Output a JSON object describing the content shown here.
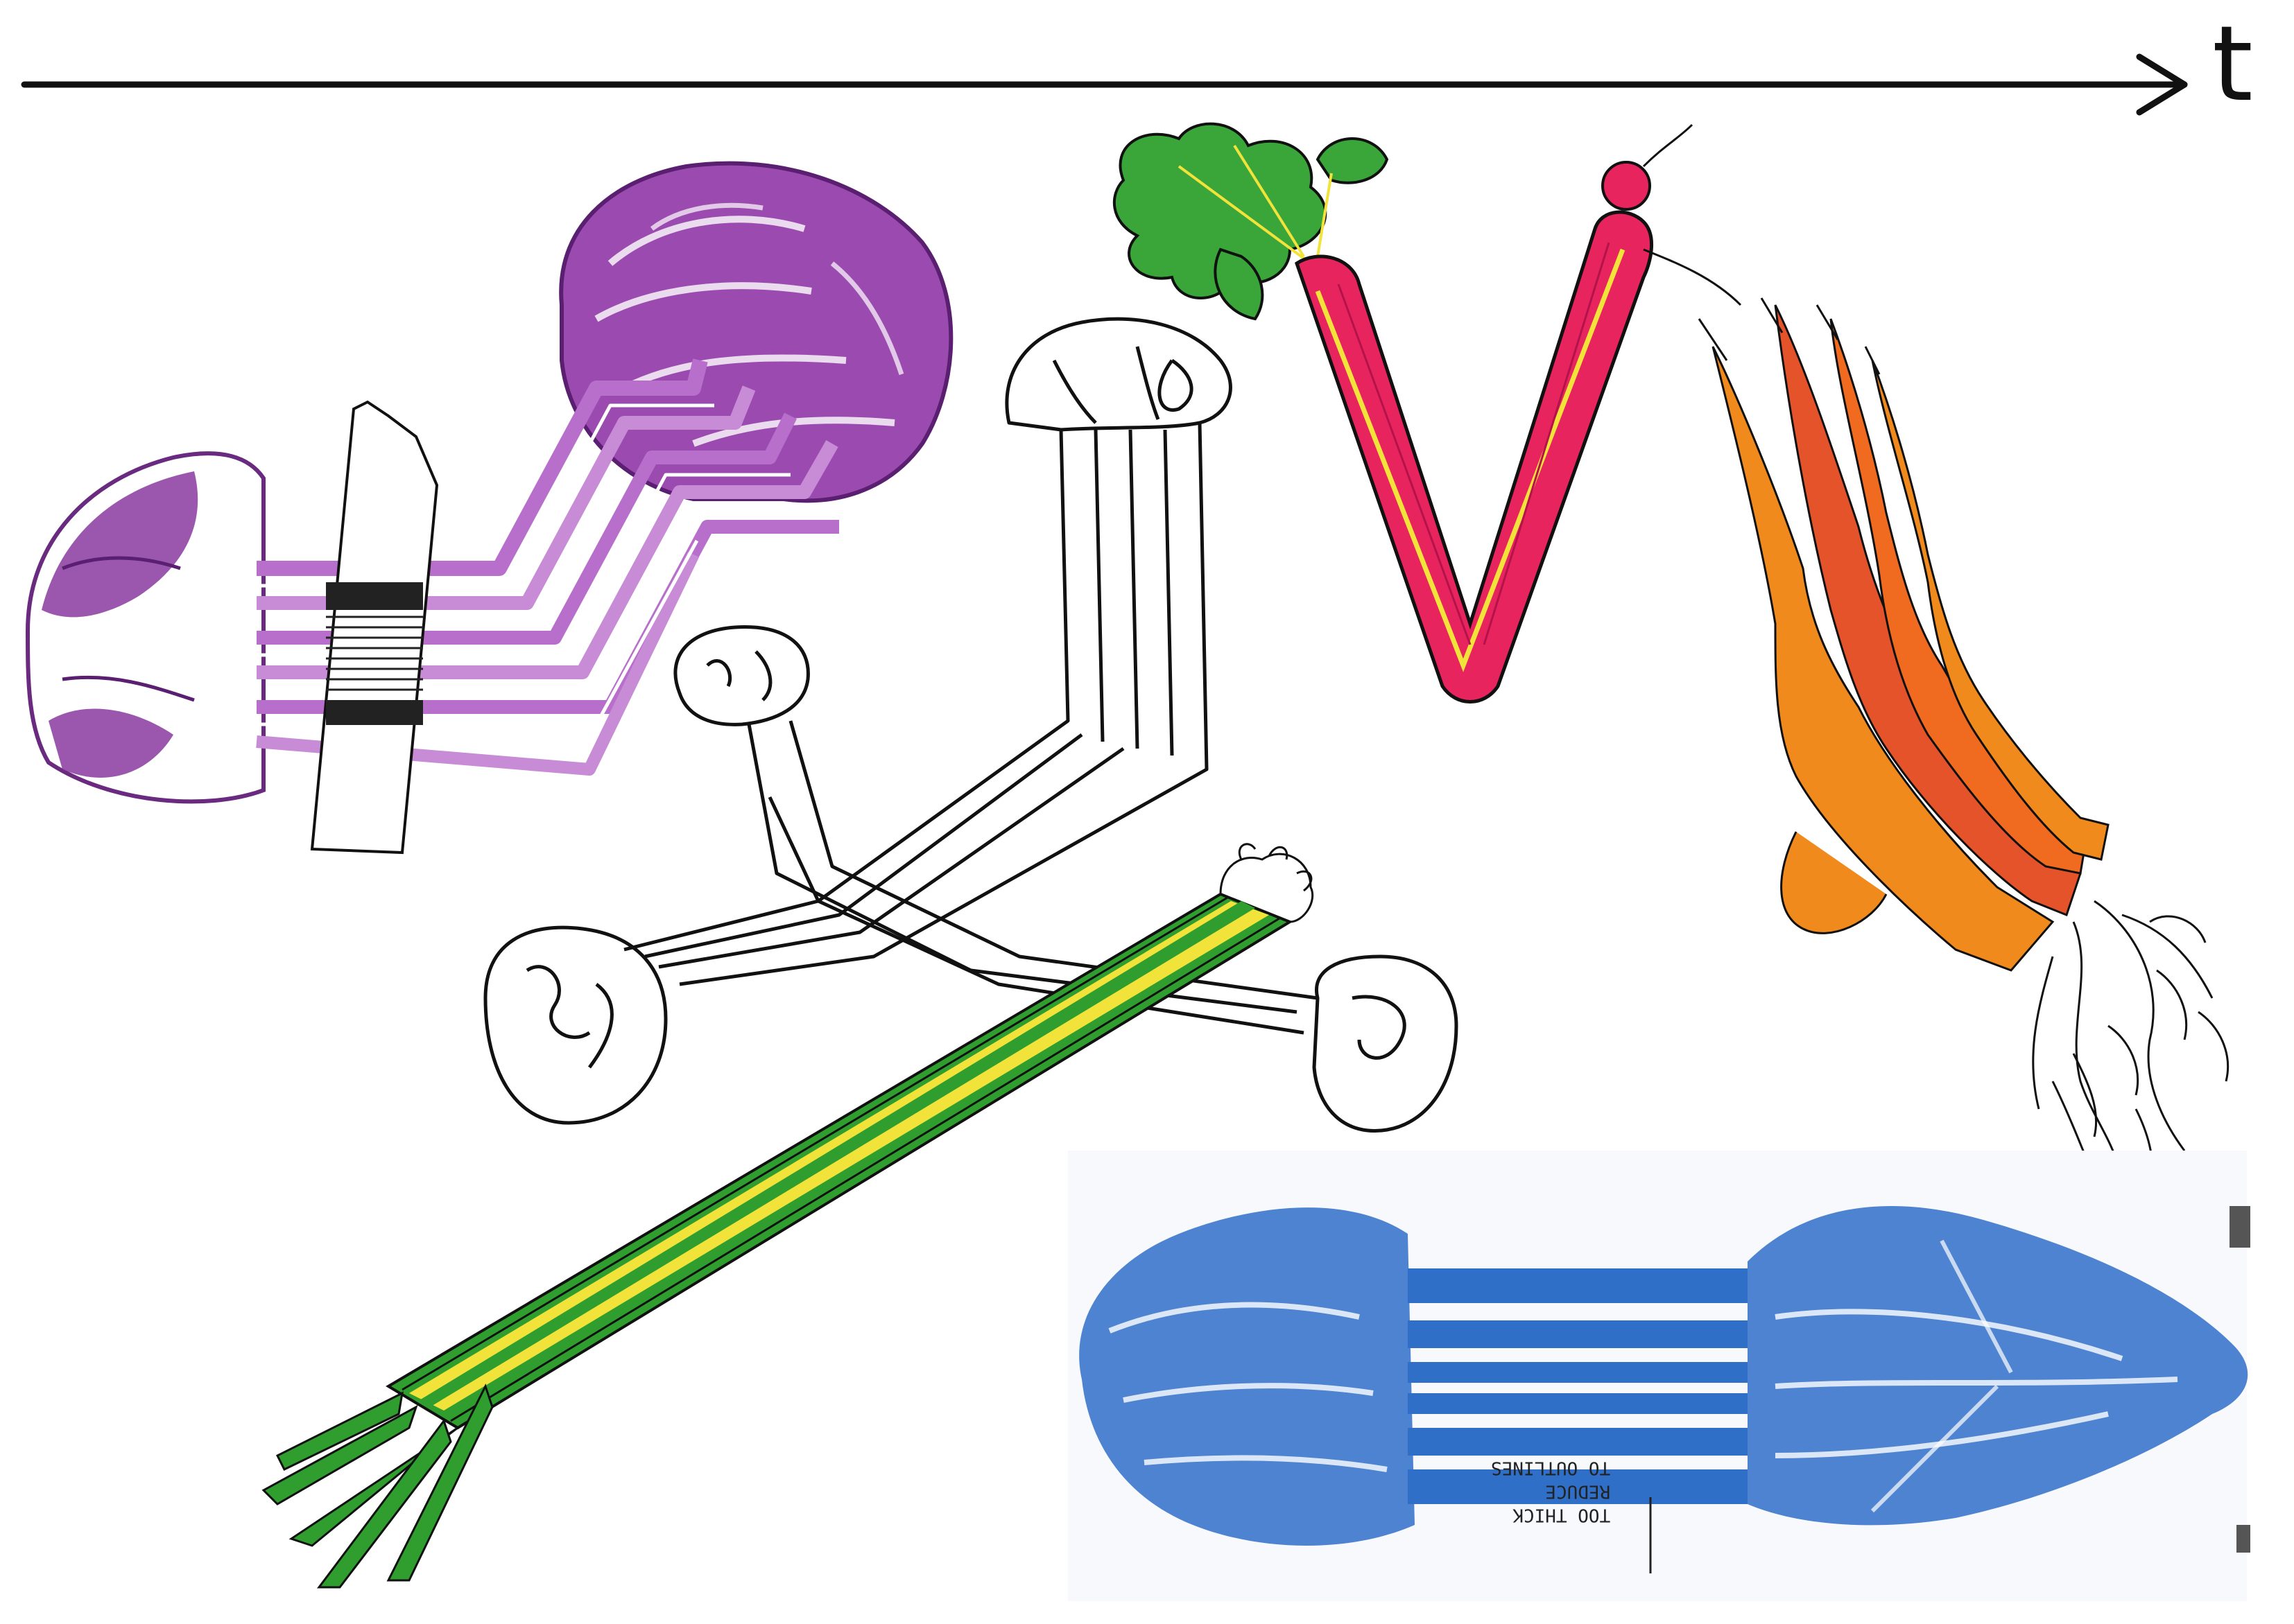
{
  "axis": {
    "label": "t"
  },
  "print_note": {
    "line1": "TOO THICK",
    "line2": "REDUCE",
    "line3": "TO OUTLINES"
  },
  "colors": {
    "cabbage": "#8a3aa0",
    "cabbage_light": "#c88bd6",
    "leek_green": "#2f9e2f",
    "leek_yellow": "#f2e33a",
    "radish": "#e8245f",
    "radish_leaves": "#3aa63a",
    "carrot": "#f08a1c",
    "carrot_dark": "#e5532a",
    "print_blue": "#2f6fc8",
    "ink": "#111111"
  }
}
